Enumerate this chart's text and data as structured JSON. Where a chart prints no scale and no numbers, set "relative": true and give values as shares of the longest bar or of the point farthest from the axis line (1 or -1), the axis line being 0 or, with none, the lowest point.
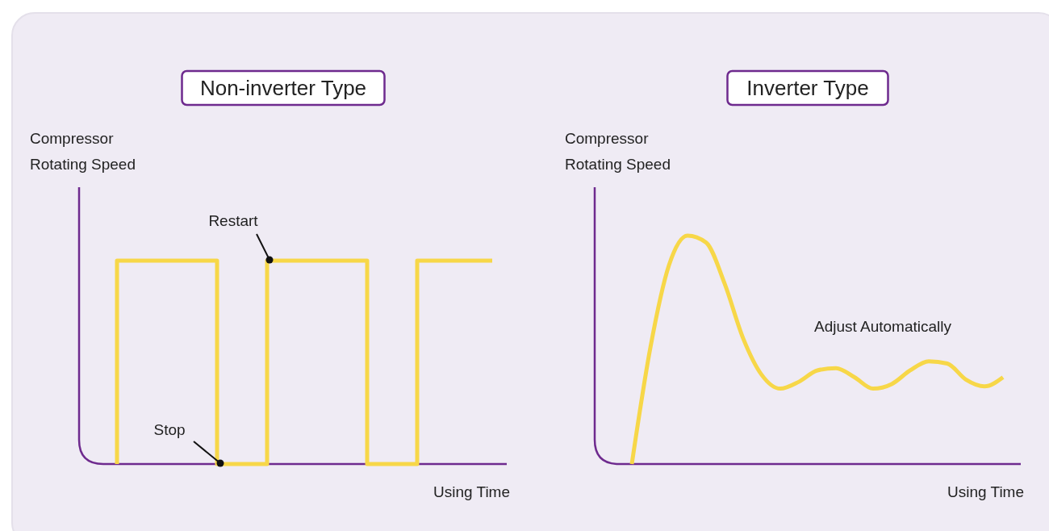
{
  "chart_data": [
    {
      "type": "step",
      "title": "Non-inverter Type",
      "ylabel": "Compressor\nRotating Speed",
      "xlabel": "Using Time",
      "relative": true,
      "categories": [
        null,
        null,
        null,
        null,
        null,
        null,
        null,
        null,
        null,
        null,
        null,
        null,
        null,
        null,
        null,
        null
      ],
      "series": [
        {
          "color": "#f7d748",
          "values": [
            0,
            1,
            1,
            1,
            1,
            0,
            0,
            1,
            1,
            1,
            1,
            0,
            0,
            1,
            1,
            1
          ]
        }
      ],
      "annotations": [
        "Restart",
        "Stop"
      ]
    },
    {
      "type": "line",
      "title": "Inverter Type",
      "ylabel": "Compressor\nRotating Speed",
      "xlabel": "Using Time",
      "relative": true,
      "categories": [
        null,
        null,
        null,
        null,
        null,
        null,
        null,
        null,
        null,
        null,
        null,
        null,
        null,
        null,
        null,
        null,
        null,
        null,
        null,
        null,
        null
      ],
      "series": [
        {
          "color": "#f7d748",
          "values": [
            0,
            0.51,
            0.87,
            1,
            0.97,
            0.79,
            0.55,
            0.39,
            0.33,
            0.36,
            0.41,
            0.42,
            0.38,
            0.33,
            0.35,
            0.41,
            0.45,
            0.44,
            0.37,
            0.34,
            0.38
          ]
        }
      ],
      "annotations": [
        "Adjust Automatically"
      ]
    }
  ]
}
